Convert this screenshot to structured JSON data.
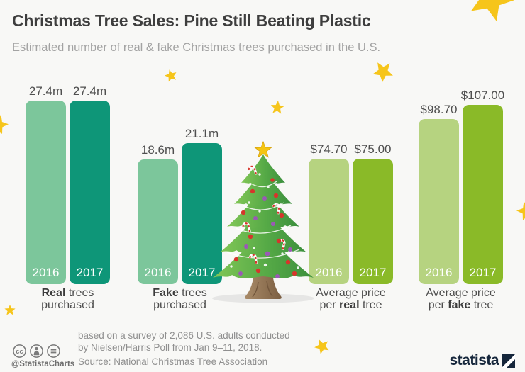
{
  "header": {
    "title": "Christmas Tree Sales: Pine Still Beating Plastic",
    "subtitle": "Estimated number of real & fake Christmas trees purchased in the U.S."
  },
  "chart_data": {
    "type": "bar",
    "title": "Christmas Tree Sales: Pine Still Beating Plastic",
    "subtitle": "Estimated number of real & fake Christmas trees purchased in the U.S.",
    "legend_years": [
      "2016",
      "2017"
    ],
    "groups": [
      {
        "id": "real-trees-purchased",
        "palette": "teal",
        "unit": "million",
        "caption": [
          [
            {
              "t": "Real",
              "b": true
            },
            {
              "t": " trees",
              "b": false
            }
          ],
          [
            {
              "t": "purchased",
              "b": false
            }
          ]
        ],
        "bars": [
          {
            "year": "2016",
            "value": 27.4,
            "label": "27.4m"
          },
          {
            "year": "2017",
            "value": 27.4,
            "label": "27.4m"
          }
        ]
      },
      {
        "id": "fake-trees-purchased",
        "palette": "teal",
        "unit": "million",
        "caption": [
          [
            {
              "t": "Fake",
              "b": true
            },
            {
              "t": " trees",
              "b": false
            }
          ],
          [
            {
              "t": "purchased",
              "b": false
            }
          ]
        ],
        "bars": [
          {
            "year": "2016",
            "value": 18.6,
            "label": "18.6m"
          },
          {
            "year": "2017",
            "value": 21.1,
            "label": "21.1m"
          }
        ]
      },
      {
        "id": "average-price-real-tree",
        "palette": "green",
        "unit": "dollar",
        "caption": [
          [
            {
              "t": "Average price",
              "b": false
            }
          ],
          [
            {
              "t": "per ",
              "b": false
            },
            {
              "t": "real",
              "b": true
            },
            {
              "t": " tree",
              "b": false
            }
          ]
        ],
        "bars": [
          {
            "year": "2016",
            "value": 74.7,
            "label": "$74.70"
          },
          {
            "year": "2017",
            "value": 75.0,
            "label": "$75.00"
          }
        ]
      },
      {
        "id": "average-price-fake-tree",
        "palette": "green",
        "unit": "dollar",
        "caption": [
          [
            {
              "t": "Average price",
              "b": false
            }
          ],
          [
            {
              "t": "per ",
              "b": false
            },
            {
              "t": "fake",
              "b": true
            },
            {
              "t": " tree",
              "b": false
            }
          ]
        ],
        "bars": [
          {
            "year": "2016",
            "value": 98.7,
            "label": "$98.70"
          },
          {
            "year": "2017",
            "value": 107.0,
            "label": "$107.00"
          }
        ]
      }
    ]
  },
  "colors": {
    "background": "#f8f8f6",
    "star": "#f6c51b",
    "logo_navy": "#15263b",
    "palettes": {
      "teal": {
        "light": "#7cc69b",
        "dark": "#0e9678"
      },
      "green": {
        "light": "#b6d380",
        "dark": "#8aba28"
      }
    }
  },
  "footer": {
    "note_line1": "based on a survey of 2,086 U.S. adults conducted",
    "note_line2": "by Nielsen/Harris Poll from Jan 9–11, 2018.",
    "source": "Source: National Christmas Tree Association",
    "handle": "@StatistaCharts",
    "logo_text": "statista"
  }
}
